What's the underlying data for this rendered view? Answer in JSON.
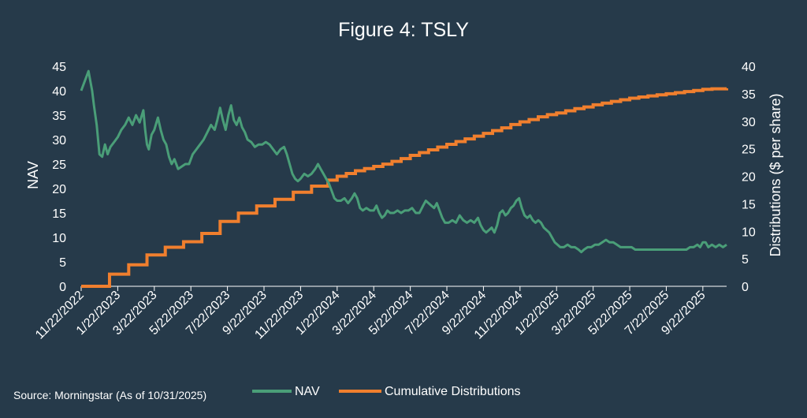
{
  "chart_data": {
    "type": "line",
    "title": "Figure 4: TSLY",
    "source": "Source: Morningstar (As of 10/31/2025)",
    "xlabel": "",
    "ylabel": "NAV",
    "y2label": "Distributions ($ per share)",
    "ylim": [
      0,
      45
    ],
    "y2lim": [
      0,
      40
    ],
    "y_ticks": [
      "0",
      "5",
      "10",
      "15",
      "20",
      "25",
      "30",
      "35",
      "40",
      "45"
    ],
    "y2_ticks": [
      "0",
      "5",
      "10",
      "15",
      "20",
      "25",
      "30",
      "35",
      "40"
    ],
    "x_ticks": [
      "11/22/2022",
      "1/22/2023",
      "3/22/2023",
      "5/22/2023",
      "7/22/2023",
      "9/22/2023",
      "11/22/2023",
      "1/22/2024",
      "3/22/2024",
      "5/22/2024",
      "7/22/2024",
      "9/22/2024",
      "11/22/2024",
      "1/22/2025",
      "3/22/2025",
      "5/22/2025",
      "7/22/2025",
      "9/22/2025"
    ],
    "x_range_months": [
      0,
      35.3
    ],
    "legend_position": "bottom",
    "series": [
      {
        "name": "NAV",
        "axis": "left",
        "color": "#4a9e78",
        "points": [
          [
            0.0,
            40.0
          ],
          [
            0.15,
            41.5
          ],
          [
            0.3,
            43.0
          ],
          [
            0.4,
            44.0
          ],
          [
            0.5,
            42.0
          ],
          [
            0.6,
            40.0
          ],
          [
            0.7,
            37.0
          ],
          [
            0.85,
            33.0
          ],
          [
            1.0,
            27.0
          ],
          [
            1.15,
            26.5
          ],
          [
            1.3,
            29.0
          ],
          [
            1.45,
            27.0
          ],
          [
            1.6,
            28.5
          ],
          [
            1.8,
            29.5
          ],
          [
            2.0,
            30.5
          ],
          [
            2.2,
            32.0
          ],
          [
            2.4,
            33.0
          ],
          [
            2.6,
            34.5
          ],
          [
            2.8,
            33.0
          ],
          [
            3.0,
            35.0
          ],
          [
            3.2,
            33.5
          ],
          [
            3.4,
            36.0
          ],
          [
            3.5,
            32.0
          ],
          [
            3.6,
            29.0
          ],
          [
            3.7,
            28.0
          ],
          [
            3.85,
            31.0
          ],
          [
            4.0,
            32.0
          ],
          [
            4.2,
            34.5
          ],
          [
            4.35,
            32.0
          ],
          [
            4.5,
            30.0
          ],
          [
            4.65,
            29.0
          ],
          [
            4.8,
            26.5
          ],
          [
            4.95,
            25.0
          ],
          [
            5.1,
            26.0
          ],
          [
            5.3,
            24.0
          ],
          [
            5.5,
            24.5
          ],
          [
            5.7,
            25.0
          ],
          [
            5.9,
            25.0
          ],
          [
            6.1,
            27.0
          ],
          [
            6.3,
            28.0
          ],
          [
            6.5,
            29.0
          ],
          [
            6.7,
            30.0
          ],
          [
            6.9,
            31.5
          ],
          [
            7.1,
            33.0
          ],
          [
            7.3,
            32.0
          ],
          [
            7.45,
            34.0
          ],
          [
            7.6,
            36.5
          ],
          [
            7.75,
            34.0
          ],
          [
            7.9,
            32.0
          ],
          [
            8.05,
            35.0
          ],
          [
            8.2,
            37.0
          ],
          [
            8.35,
            34.0
          ],
          [
            8.5,
            33.0
          ],
          [
            8.65,
            34.5
          ],
          [
            8.8,
            32.5
          ],
          [
            8.95,
            31.5
          ],
          [
            9.1,
            30.0
          ],
          [
            9.3,
            29.5
          ],
          [
            9.5,
            28.5
          ],
          [
            9.7,
            29.0
          ],
          [
            9.9,
            29.0
          ],
          [
            10.1,
            29.5
          ],
          [
            10.3,
            29.0
          ],
          [
            10.5,
            28.0
          ],
          [
            10.7,
            27.0
          ],
          [
            10.9,
            28.0
          ],
          [
            11.1,
            28.5
          ],
          [
            11.25,
            27.0
          ],
          [
            11.4,
            25.0
          ],
          [
            11.55,
            23.0
          ],
          [
            11.7,
            22.0
          ],
          [
            11.85,
            21.5
          ],
          [
            12.0,
            22.0
          ],
          [
            12.2,
            23.0
          ],
          [
            12.4,
            22.5
          ],
          [
            12.6,
            23.0
          ],
          [
            12.8,
            24.0
          ],
          [
            12.95,
            25.0
          ],
          [
            13.1,
            24.0
          ],
          [
            13.25,
            23.0
          ],
          [
            13.4,
            22.0
          ],
          [
            13.55,
            21.0
          ],
          [
            13.7,
            19.5
          ],
          [
            13.85,
            18.0
          ],
          [
            14.0,
            17.5
          ],
          [
            14.2,
            17.5
          ],
          [
            14.4,
            18.0
          ],
          [
            14.6,
            17.0
          ],
          [
            14.8,
            18.0
          ],
          [
            14.95,
            19.0
          ],
          [
            15.1,
            18.0
          ],
          [
            15.25,
            16.0
          ],
          [
            15.4,
            15.5
          ],
          [
            15.6,
            16.0
          ],
          [
            15.8,
            15.5
          ],
          [
            16.0,
            15.5
          ],
          [
            16.15,
            16.5
          ],
          [
            16.3,
            15.0
          ],
          [
            16.45,
            14.0
          ],
          [
            16.6,
            14.5
          ],
          [
            16.75,
            15.5
          ],
          [
            16.9,
            15.0
          ],
          [
            17.1,
            15.0
          ],
          [
            17.3,
            15.5
          ],
          [
            17.5,
            15.0
          ],
          [
            17.7,
            15.5
          ],
          [
            17.9,
            15.5
          ],
          [
            18.1,
            16.0
          ],
          [
            18.3,
            15.0
          ],
          [
            18.5,
            15.0
          ],
          [
            18.7,
            16.5
          ],
          [
            18.85,
            17.5
          ],
          [
            19.0,
            17.0
          ],
          [
            19.15,
            16.5
          ],
          [
            19.3,
            16.0
          ],
          [
            19.45,
            17.0
          ],
          [
            19.6,
            15.5
          ],
          [
            19.75,
            14.0
          ],
          [
            19.9,
            13.0
          ],
          [
            20.1,
            13.0
          ],
          [
            20.3,
            13.5
          ],
          [
            20.5,
            13.0
          ],
          [
            20.7,
            14.5
          ],
          [
            20.9,
            13.5
          ],
          [
            21.1,
            13.0
          ],
          [
            21.3,
            13.5
          ],
          [
            21.5,
            13.0
          ],
          [
            21.7,
            14.0
          ],
          [
            21.85,
            12.5
          ],
          [
            22.0,
            11.5
          ],
          [
            22.15,
            11.0
          ],
          [
            22.3,
            11.5
          ],
          [
            22.45,
            12.0
          ],
          [
            22.6,
            11.0
          ],
          [
            22.75,
            12.5
          ],
          [
            22.9,
            15.0
          ],
          [
            23.05,
            15.5
          ],
          [
            23.2,
            14.5
          ],
          [
            23.35,
            15.0
          ],
          [
            23.5,
            16.0
          ],
          [
            23.65,
            16.5
          ],
          [
            23.8,
            17.5
          ],
          [
            23.95,
            18.0
          ],
          [
            24.1,
            16.0
          ],
          [
            24.25,
            14.5
          ],
          [
            24.4,
            14.0
          ],
          [
            24.55,
            14.5
          ],
          [
            24.7,
            13.5
          ],
          [
            24.85,
            13.0
          ],
          [
            25.0,
            13.5
          ],
          [
            25.15,
            13.0
          ],
          [
            25.3,
            12.0
          ],
          [
            25.45,
            11.5
          ],
          [
            25.6,
            11.0
          ],
          [
            25.75,
            10.0
          ],
          [
            25.9,
            9.0
          ],
          [
            26.05,
            8.5
          ],
          [
            26.2,
            8.0
          ],
          [
            26.4,
            8.0
          ],
          [
            26.6,
            8.5
          ],
          [
            26.8,
            8.0
          ],
          [
            27.0,
            8.0
          ],
          [
            27.2,
            7.5
          ],
          [
            27.35,
            7.0
          ],
          [
            27.5,
            7.5
          ],
          [
            27.7,
            8.0
          ],
          [
            27.9,
            8.0
          ],
          [
            28.1,
            8.5
          ],
          [
            28.3,
            8.5
          ],
          [
            28.5,
            9.0
          ],
          [
            28.7,
            9.5
          ],
          [
            28.9,
            9.0
          ],
          [
            29.1,
            9.0
          ],
          [
            29.3,
            8.5
          ],
          [
            29.5,
            8.0
          ],
          [
            29.7,
            8.0
          ],
          [
            29.9,
            8.0
          ],
          [
            30.1,
            8.0
          ],
          [
            30.3,
            7.5
          ],
          [
            30.5,
            7.5
          ],
          [
            30.7,
            7.5
          ],
          [
            30.9,
            7.5
          ],
          [
            31.1,
            7.5
          ],
          [
            31.3,
            7.5
          ],
          [
            31.5,
            7.5
          ],
          [
            31.7,
            7.5
          ],
          [
            31.9,
            7.5
          ],
          [
            32.1,
            7.5
          ],
          [
            32.3,
            7.5
          ],
          [
            32.5,
            7.5
          ],
          [
            32.7,
            7.5
          ],
          [
            32.9,
            7.5
          ],
          [
            33.1,
            7.5
          ],
          [
            33.3,
            8.0
          ],
          [
            33.5,
            8.0
          ],
          [
            33.7,
            8.5
          ],
          [
            33.85,
            8.0
          ],
          [
            34.0,
            9.0
          ],
          [
            34.15,
            9.0
          ],
          [
            34.3,
            8.0
          ],
          [
            34.5,
            8.5
          ],
          [
            34.7,
            8.0
          ],
          [
            34.9,
            8.5
          ],
          [
            35.1,
            8.0
          ],
          [
            35.3,
            8.5
          ]
        ]
      },
      {
        "name": "Cumulative Distributions",
        "axis": "right",
        "color": "#f07f2e",
        "steps": [
          [
            0.0,
            0.0
          ],
          [
            1.55,
            2.2
          ],
          [
            2.6,
            3.9
          ],
          [
            3.6,
            5.7
          ],
          [
            4.6,
            7.1
          ],
          [
            5.6,
            8.1
          ],
          [
            6.6,
            9.6
          ],
          [
            7.6,
            11.8
          ],
          [
            8.6,
            13.3
          ],
          [
            9.6,
            14.6
          ],
          [
            10.6,
            15.8
          ],
          [
            11.6,
            17.1
          ],
          [
            12.6,
            18.2
          ],
          [
            13.5,
            19.3
          ],
          [
            14.0,
            20.0
          ],
          [
            14.5,
            20.5
          ],
          [
            15.0,
            21.0
          ],
          [
            15.5,
            21.4
          ],
          [
            16.0,
            21.8
          ],
          [
            16.5,
            22.2
          ],
          [
            17.0,
            22.7
          ],
          [
            17.5,
            23.2
          ],
          [
            18.0,
            23.8
          ],
          [
            18.5,
            24.3
          ],
          [
            19.0,
            24.8
          ],
          [
            19.5,
            25.3
          ],
          [
            20.0,
            25.8
          ],
          [
            20.5,
            26.3
          ],
          [
            21.0,
            26.8
          ],
          [
            21.5,
            27.3
          ],
          [
            22.0,
            27.8
          ],
          [
            22.5,
            28.3
          ],
          [
            23.0,
            28.8
          ],
          [
            23.5,
            29.4
          ],
          [
            24.0,
            29.9
          ],
          [
            24.5,
            30.3
          ],
          [
            25.0,
            30.8
          ],
          [
            25.5,
            31.2
          ],
          [
            26.0,
            31.5
          ],
          [
            26.5,
            31.9
          ],
          [
            27.0,
            32.3
          ],
          [
            27.5,
            32.6
          ],
          [
            28.0,
            33.0
          ],
          [
            28.5,
            33.3
          ],
          [
            29.0,
            33.6
          ],
          [
            29.5,
            33.9
          ],
          [
            30.0,
            34.2
          ],
          [
            30.5,
            34.4
          ],
          [
            31.0,
            34.6
          ],
          [
            31.5,
            34.8
          ],
          [
            32.0,
            35.0
          ],
          [
            32.5,
            35.2
          ],
          [
            33.0,
            35.4
          ],
          [
            33.5,
            35.6
          ],
          [
            34.0,
            35.8
          ],
          [
            34.5,
            35.9
          ],
          [
            35.3,
            36.0
          ]
        ]
      }
    ]
  }
}
